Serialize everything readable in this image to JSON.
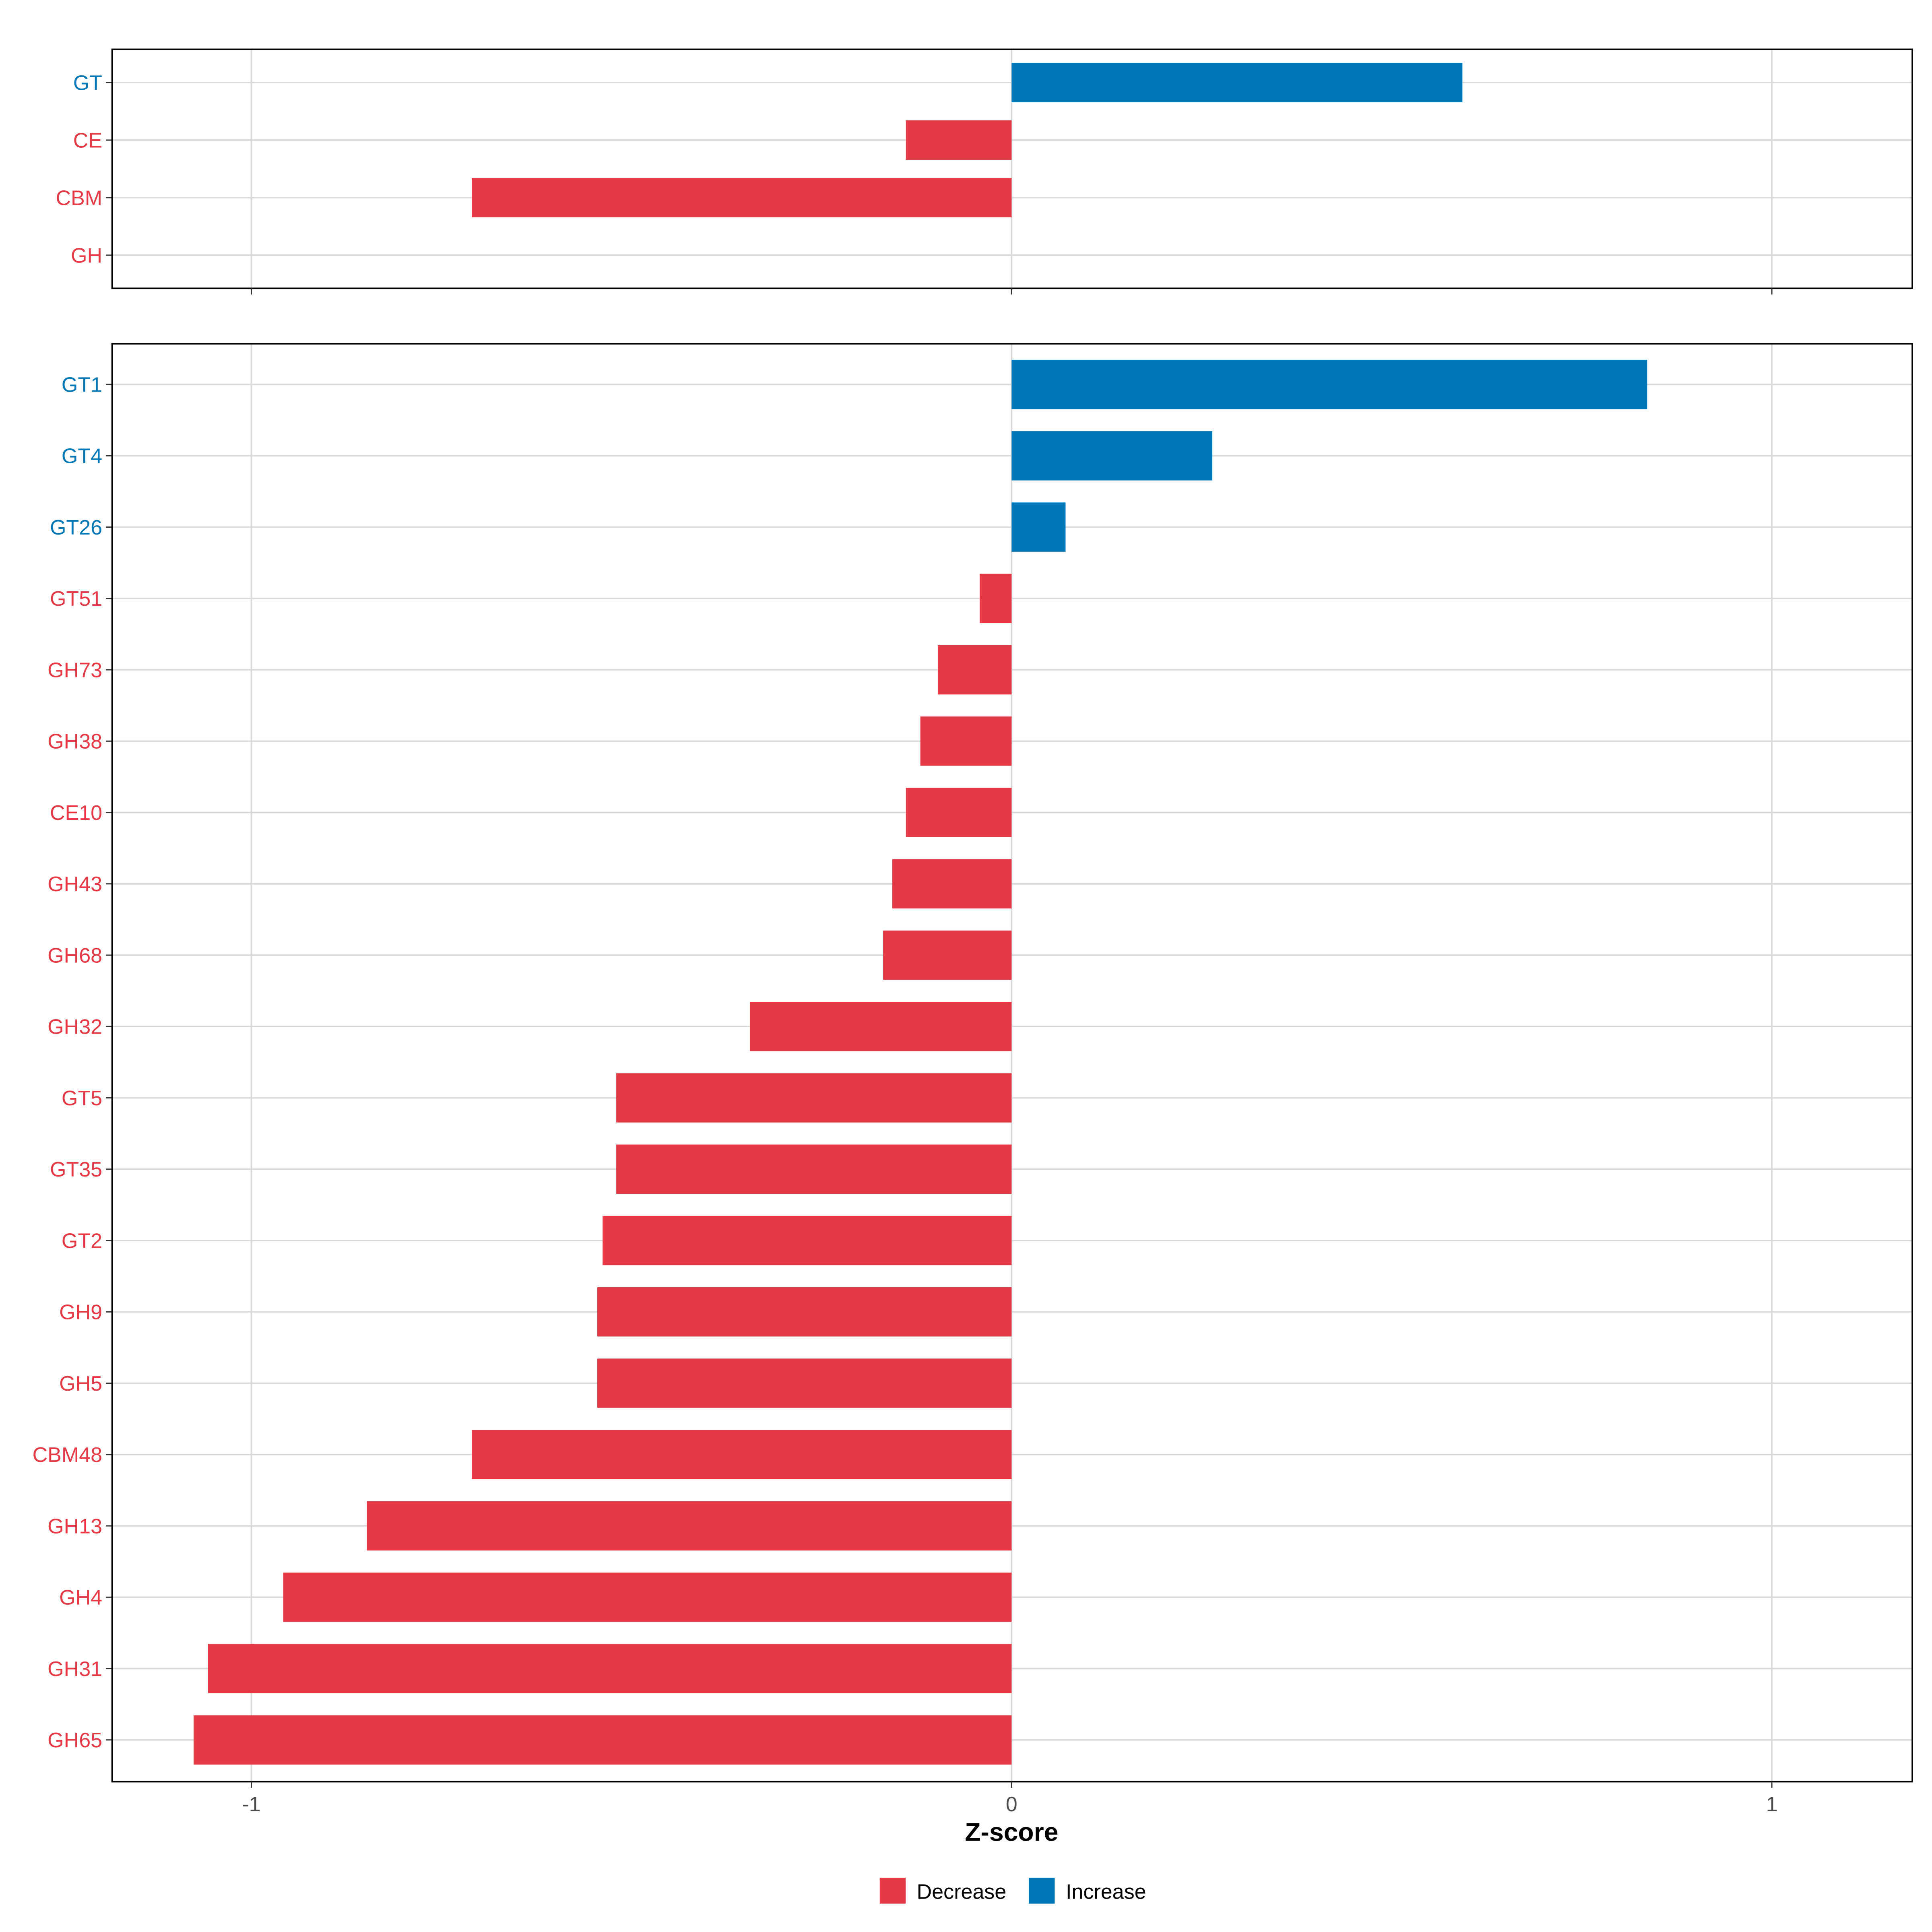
{
  "chart_data": [
    {
      "type": "bar",
      "orientation": "horizontal",
      "panel": "top",
      "categories": [
        "GT",
        "CE",
        "CBM",
        "GH"
      ],
      "values": [
        0.593,
        -0.139,
        -0.71,
        0.0
      ],
      "xlim": [
        -1.2,
        1.18
      ],
      "grid": true
    },
    {
      "type": "bar",
      "orientation": "horizontal",
      "panel": "bottom",
      "categories": [
        "GT1",
        "GT4",
        "GT26",
        "GT51",
        "GH73",
        "GH38",
        "CE10",
        "GH43",
        "GH68",
        "GH32",
        "GT5",
        "GT35",
        "GT2",
        "GH9",
        "GH5",
        "CBM48",
        "GH13",
        "GH4",
        "GH31",
        "GH65"
      ],
      "values": [
        0.836,
        0.264,
        0.071,
        -0.042,
        -0.097,
        -0.12,
        -0.139,
        -0.157,
        -0.169,
        -0.344,
        -0.52,
        -0.52,
        -0.538,
        -0.545,
        -0.545,
        -0.71,
        -0.848,
        -0.958,
        -1.057,
        -1.076
      ],
      "xlim": [
        -1.2,
        1.18
      ],
      "xticks": [
        -1,
        0,
        1
      ],
      "xtick_labels": [
        "-1",
        "0",
        "1"
      ],
      "xlabel": "Z-score",
      "grid": true
    }
  ],
  "legend": {
    "placement": "bottom",
    "items": [
      {
        "label": "Decrease",
        "color": "#E63946"
      },
      {
        "label": "Increase",
        "color": "#0077B6"
      }
    ]
  },
  "colors": {
    "decrease": "#E63946",
    "increase": "#0077B6",
    "grid": "#D9D9D9"
  }
}
